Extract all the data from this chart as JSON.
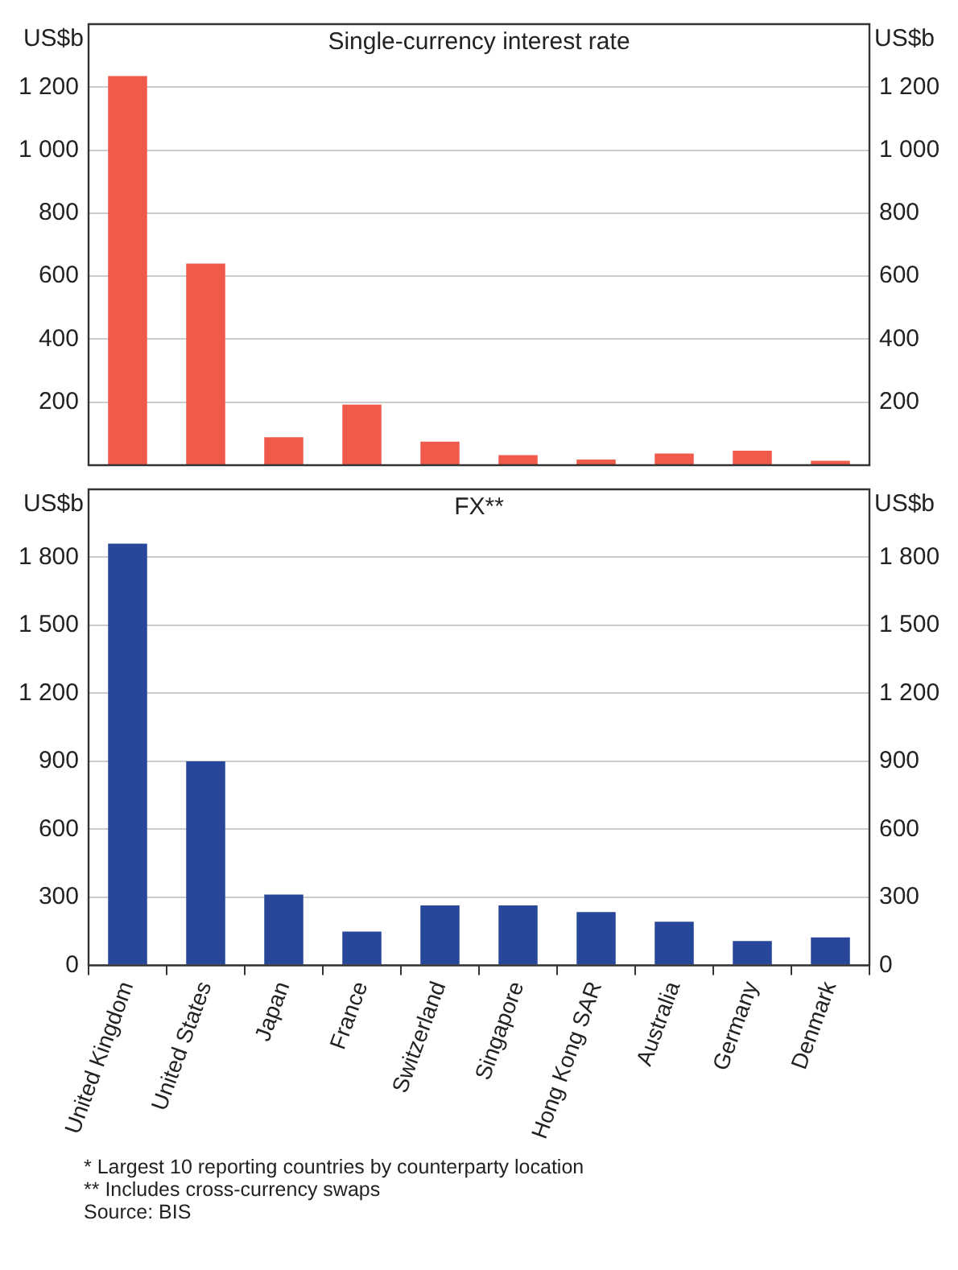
{
  "chart_data": [
    {
      "type": "bar",
      "title": "Single-currency interest rate",
      "ylabel": "US$b",
      "y2label": "US$b",
      "categories": [
        null,
        null,
        null,
        null,
        null,
        null,
        null,
        null,
        null,
        null
      ],
      "values": [
        1235,
        640,
        89,
        192,
        75,
        32,
        18,
        37,
        46,
        14
      ],
      "color": "#ef5a4b",
      "ylim": [
        0,
        1400
      ],
      "yticks": [
        {
          "value": 200,
          "label": "200"
        },
        {
          "value": 400,
          "label": "400"
        },
        {
          "value": 600,
          "label": "600"
        },
        {
          "value": 800,
          "label": "800"
        },
        {
          "value": 1000,
          "label": "1 000"
        },
        {
          "value": 1200,
          "label": "1 200"
        }
      ],
      "y2lim": [
        0,
        1400
      ],
      "y2ticks": [
        {
          "value": 200,
          "label": "200"
        },
        {
          "value": 400,
          "label": "400"
        },
        {
          "value": 600,
          "label": "600"
        },
        {
          "value": 800,
          "label": "800"
        },
        {
          "value": 1000,
          "label": "1 000"
        },
        {
          "value": 1200,
          "label": "1 200"
        }
      ],
      "grid": "y",
      "tick_labels": "y"
    },
    {
      "type": "bar",
      "title": "FX**",
      "ylabel": "US$b",
      "y2label": "US$b",
      "categories": [
        "United Kingdom",
        "United States",
        "Japan",
        "France",
        "Switzerland",
        "Singapore",
        "Hong Kong SAR",
        "Australia",
        "Germany",
        "Denmark"
      ],
      "values": [
        1860,
        900,
        312,
        149,
        264,
        264,
        235,
        192,
        107,
        123
      ],
      "color": "#27479b",
      "ylim": [
        0,
        2100
      ],
      "yticks": [
        0,
        300,
        600,
        900,
        {
          "value": 1200,
          "label": "1 200"
        },
        {
          "value": 1500,
          "label": "1 500"
        },
        {
          "value": 1800,
          "label": "1 800"
        }
      ],
      "y2lim": [
        0,
        2100
      ],
      "y2ticks": [
        0,
        300,
        600,
        900,
        {
          "value": 1200,
          "label": "1 200"
        },
        {
          "value": 1500,
          "label": "1 500"
        },
        {
          "value": 1800,
          "label": "1 800"
        }
      ],
      "grid": "y",
      "annotations": [
        "*  Largest 10 reporting countries by counterparty location",
        "** Includes cross-currency swaps",
        "Source: BIS"
      ]
    }
  ]
}
